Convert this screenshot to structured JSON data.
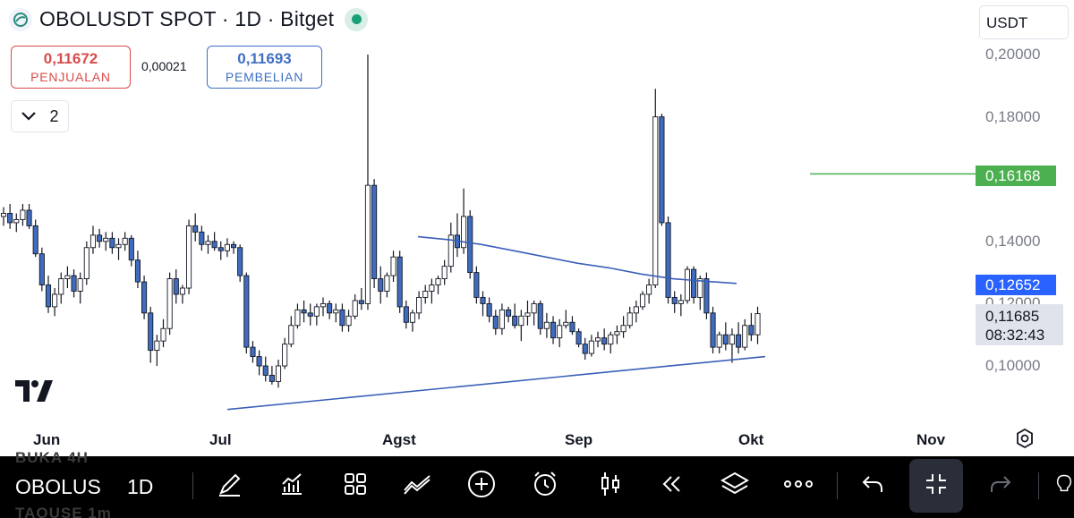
{
  "header": {
    "title": "OBOLUSDT SPOT · 1D · Bitget",
    "symbol_logo_icon": "obol-logo-icon",
    "status_icon": "market-open-dot-icon",
    "status_color": "#17a078"
  },
  "trade": {
    "sell_price": "0,11672",
    "sell_label": "PENJUALAN",
    "spread": "0,00021",
    "buy_price": "0,11693",
    "buy_label": "PEMBELIAN"
  },
  "indicators_toggle": {
    "icon": "chevron-down-icon",
    "count": "2"
  },
  "currency": {
    "selected": "USDT"
  },
  "price_scale": {
    "ticks": [
      "0,20000",
      "0,18000",
      "0,14000",
      "0,12000",
      "0,10000"
    ],
    "horizontal_line_label": "0,16168",
    "moving_average_label": "0,12652",
    "last_price": "0,11685",
    "countdown": "08:32:43"
  },
  "time_scale": {
    "ticks": [
      "Jun",
      "Jul",
      "Agst",
      "Sep",
      "Okt",
      "Nov"
    ]
  },
  "colors": {
    "candle_body": "#3f6cbf",
    "candle_wick": "#131722",
    "moving_average": "#3a5fb8",
    "trendline": "#3a5fb8",
    "horizontal_line": "#4caf50",
    "last_price_bg": "#e0e3eb"
  },
  "chart_data": {
    "type": "candlestick",
    "interval": "1D",
    "x": [
      "Jun",
      "Jul",
      "Agst",
      "Sep",
      "Okt",
      "Nov"
    ],
    "ylim": [
      0.09,
      0.205
    ],
    "price_ticks": [
      0.2,
      0.18,
      0.14,
      0.12,
      0.1
    ],
    "candles_ohlc": [
      [
        0.148,
        0.151,
        0.145,
        0.149
      ],
      [
        0.149,
        0.152,
        0.144,
        0.146
      ],
      [
        0.146,
        0.149,
        0.143,
        0.147
      ],
      [
        0.147,
        0.152,
        0.145,
        0.15
      ],
      [
        0.15,
        0.152,
        0.144,
        0.145
      ],
      [
        0.145,
        0.147,
        0.135,
        0.136
      ],
      [
        0.136,
        0.138,
        0.124,
        0.126
      ],
      [
        0.126,
        0.129,
        0.117,
        0.119
      ],
      [
        0.119,
        0.125,
        0.116,
        0.123
      ],
      [
        0.123,
        0.13,
        0.12,
        0.128
      ],
      [
        0.128,
        0.132,
        0.125,
        0.129
      ],
      [
        0.129,
        0.131,
        0.122,
        0.124
      ],
      [
        0.124,
        0.13,
        0.12,
        0.128
      ],
      [
        0.128,
        0.14,
        0.126,
        0.138
      ],
      [
        0.138,
        0.145,
        0.136,
        0.142
      ],
      [
        0.142,
        0.144,
        0.138,
        0.14
      ],
      [
        0.14,
        0.143,
        0.137,
        0.141
      ],
      [
        0.141,
        0.143,
        0.136,
        0.138
      ],
      [
        0.138,
        0.141,
        0.134,
        0.139
      ],
      [
        0.139,
        0.143,
        0.137,
        0.141
      ],
      [
        0.141,
        0.142,
        0.132,
        0.134
      ],
      [
        0.134,
        0.137,
        0.125,
        0.127
      ],
      [
        0.127,
        0.129,
        0.115,
        0.117
      ],
      [
        0.117,
        0.119,
        0.101,
        0.105
      ],
      [
        0.105,
        0.11,
        0.1,
        0.108
      ],
      [
        0.108,
        0.115,
        0.106,
        0.112
      ],
      [
        0.112,
        0.13,
        0.11,
        0.128
      ],
      [
        0.128,
        0.131,
        0.12,
        0.123
      ],
      [
        0.123,
        0.126,
        0.12,
        0.125
      ],
      [
        0.125,
        0.147,
        0.123,
        0.145
      ],
      [
        0.145,
        0.149,
        0.14,
        0.143
      ],
      [
        0.143,
        0.145,
        0.137,
        0.139
      ],
      [
        0.139,
        0.142,
        0.136,
        0.14
      ],
      [
        0.14,
        0.143,
        0.137,
        0.138
      ],
      [
        0.138,
        0.14,
        0.134,
        0.137
      ],
      [
        0.137,
        0.141,
        0.135,
        0.139
      ],
      [
        0.139,
        0.14,
        0.136,
        0.138
      ],
      [
        0.138,
        0.139,
        0.127,
        0.129
      ],
      [
        0.129,
        0.13,
        0.104,
        0.106
      ],
      [
        0.106,
        0.108,
        0.101,
        0.103
      ],
      [
        0.103,
        0.105,
        0.097,
        0.1
      ],
      [
        0.1,
        0.103,
        0.095,
        0.097
      ],
      [
        0.097,
        0.1,
        0.094,
        0.095
      ],
      [
        0.095,
        0.102,
        0.093,
        0.1
      ],
      [
        0.1,
        0.109,
        0.099,
        0.107
      ],
      [
        0.107,
        0.116,
        0.106,
        0.113
      ],
      [
        0.113,
        0.12,
        0.112,
        0.118
      ],
      [
        0.118,
        0.121,
        0.114,
        0.117
      ],
      [
        0.117,
        0.12,
        0.113,
        0.116
      ],
      [
        0.116,
        0.12,
        0.113,
        0.119
      ],
      [
        0.119,
        0.122,
        0.116,
        0.12
      ],
      [
        0.12,
        0.121,
        0.115,
        0.117
      ],
      [
        0.117,
        0.12,
        0.114,
        0.118
      ],
      [
        0.118,
        0.12,
        0.111,
        0.113
      ],
      [
        0.113,
        0.118,
        0.111,
        0.116
      ],
      [
        0.116,
        0.123,
        0.115,
        0.121
      ],
      [
        0.121,
        0.125,
        0.118,
        0.12
      ],
      [
        0.12,
        0.2,
        0.118,
        0.158
      ],
      [
        0.158,
        0.16,
        0.125,
        0.128
      ],
      [
        0.128,
        0.132,
        0.12,
        0.124
      ],
      [
        0.124,
        0.13,
        0.122,
        0.129
      ],
      [
        0.129,
        0.137,
        0.127,
        0.135
      ],
      [
        0.135,
        0.137,
        0.117,
        0.119
      ],
      [
        0.119,
        0.121,
        0.112,
        0.114
      ],
      [
        0.114,
        0.118,
        0.111,
        0.117
      ],
      [
        0.117,
        0.124,
        0.115,
        0.122
      ],
      [
        0.122,
        0.126,
        0.12,
        0.124
      ],
      [
        0.124,
        0.128,
        0.12,
        0.126
      ],
      [
        0.126,
        0.129,
        0.123,
        0.128
      ],
      [
        0.128,
        0.134,
        0.126,
        0.132
      ],
      [
        0.132,
        0.146,
        0.13,
        0.142
      ],
      [
        0.142,
        0.149,
        0.135,
        0.138
      ],
      [
        0.138,
        0.157,
        0.136,
        0.148
      ],
      [
        0.148,
        0.15,
        0.128,
        0.13
      ],
      [
        0.13,
        0.132,
        0.12,
        0.122
      ],
      [
        0.122,
        0.124,
        0.116,
        0.12
      ],
      [
        0.12,
        0.122,
        0.114,
        0.116
      ],
      [
        0.116,
        0.118,
        0.11,
        0.112
      ],
      [
        0.112,
        0.12,
        0.11,
        0.118
      ],
      [
        0.118,
        0.119,
        0.114,
        0.116
      ],
      [
        0.116,
        0.12,
        0.112,
        0.113
      ],
      [
        0.113,
        0.118,
        0.108,
        0.116
      ],
      [
        0.116,
        0.121,
        0.113,
        0.117
      ],
      [
        0.117,
        0.121,
        0.113,
        0.12
      ],
      [
        0.12,
        0.121,
        0.11,
        0.112
      ],
      [
        0.112,
        0.117,
        0.109,
        0.114
      ],
      [
        0.114,
        0.116,
        0.107,
        0.109
      ],
      [
        0.109,
        0.115,
        0.106,
        0.113
      ],
      [
        0.113,
        0.118,
        0.112,
        0.114
      ],
      [
        0.114,
        0.116,
        0.11,
        0.111
      ],
      [
        0.111,
        0.112,
        0.106,
        0.107
      ],
      [
        0.107,
        0.109,
        0.102,
        0.104
      ],
      [
        0.104,
        0.11,
        0.103,
        0.108
      ],
      [
        0.108,
        0.111,
        0.106,
        0.109
      ],
      [
        0.109,
        0.112,
        0.105,
        0.107
      ],
      [
        0.107,
        0.111,
        0.104,
        0.11
      ],
      [
        0.11,
        0.113,
        0.107,
        0.111
      ],
      [
        0.111,
        0.116,
        0.109,
        0.113
      ],
      [
        0.113,
        0.119,
        0.112,
        0.117
      ],
      [
        0.117,
        0.121,
        0.114,
        0.119
      ],
      [
        0.119,
        0.124,
        0.118,
        0.123
      ],
      [
        0.123,
        0.128,
        0.12,
        0.126
      ],
      [
        0.126,
        0.189,
        0.125,
        0.18
      ],
      [
        0.18,
        0.181,
        0.145,
        0.146
      ],
      [
        0.146,
        0.148,
        0.12,
        0.122
      ],
      [
        0.122,
        0.124,
        0.117,
        0.12
      ],
      [
        0.12,
        0.123,
        0.116,
        0.121
      ],
      [
        0.121,
        0.132,
        0.12,
        0.131
      ],
      [
        0.131,
        0.132,
        0.12,
        0.122
      ],
      [
        0.122,
        0.129,
        0.118,
        0.128
      ],
      [
        0.128,
        0.13,
        0.115,
        0.117
      ],
      [
        0.117,
        0.119,
        0.104,
        0.106
      ],
      [
        0.106,
        0.111,
        0.104,
        0.11
      ],
      [
        0.11,
        0.114,
        0.105,
        0.107
      ],
      [
        0.107,
        0.112,
        0.101,
        0.11
      ],
      [
        0.11,
        0.114,
        0.104,
        0.106
      ],
      [
        0.106,
        0.115,
        0.105,
        0.113
      ],
      [
        0.113,
        0.117,
        0.108,
        0.11
      ],
      [
        0.11,
        0.119,
        0.107,
        0.1168
      ]
    ],
    "moving_average": [
      [
        0.1415,
        0.1405,
        0.139,
        0.137,
        0.135,
        0.133,
        0.1315,
        0.1295,
        0.128,
        0.1272,
        0.1265
      ]
    ],
    "horizontal_line": 0.16168,
    "trendline": [
      [
        0.086,
        0.103
      ]
    ]
  },
  "toolbar": {
    "symbol": "OBOLUS",
    "interval": "1D",
    "ghost_row1": "BUKA        4H",
    "ghost_row2": "TAOUSE      1m",
    "icons": [
      "drawing-pen-icon",
      "indicators-icon",
      "grid-layouts-icon",
      "trend-tools-icon",
      "add-circle-icon",
      "alert-clock-icon",
      "candles-icon",
      "replay-icon",
      "layers-icon",
      "more-icon",
      "undo-icon",
      "collapse-icon",
      "redo-icon",
      "lightbulb-icon"
    ]
  }
}
